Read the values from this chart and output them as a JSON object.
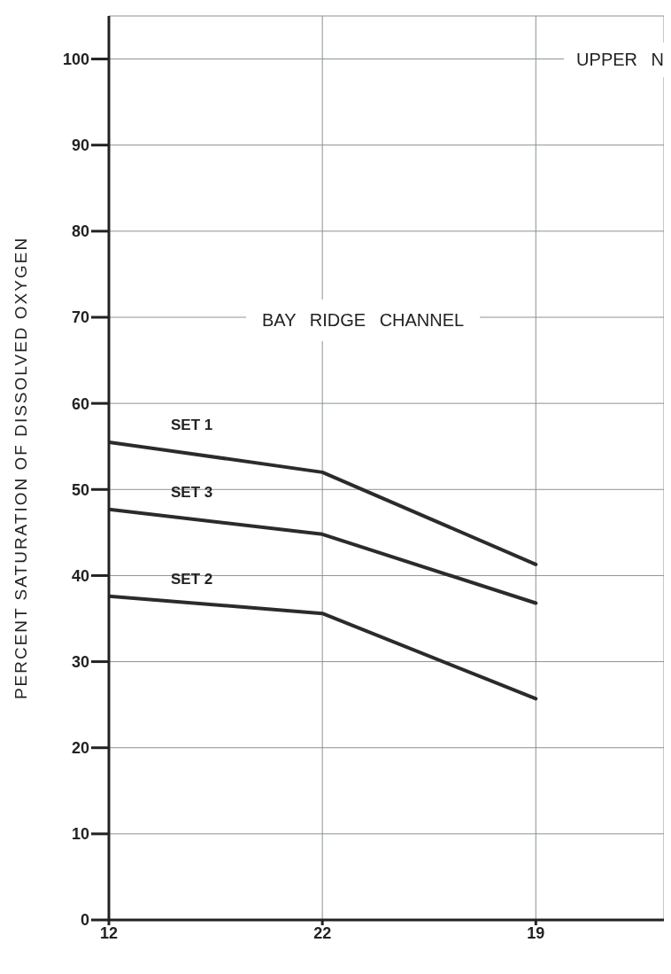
{
  "chart_data": {
    "type": "line",
    "ylabel": "PERCENT SATURATION OF DISSOLVED OXYGEN",
    "annotations": [
      "UPPER N",
      "BAY RIDGE CHANNEL"
    ],
    "categories": [
      "12",
      "22",
      "19"
    ],
    "ylim": [
      0,
      105
    ],
    "yticks": [
      0,
      10,
      20,
      30,
      40,
      50,
      60,
      70,
      80,
      90,
      100
    ],
    "grid": true,
    "marker": "none",
    "line_style": "solid",
    "series": [
      {
        "name": "SET 1",
        "color": "#2b2b2b",
        "values": [
          55.5,
          52,
          41.3
        ]
      },
      {
        "name": "SET 3",
        "color": "#2b2b2b",
        "values": [
          47.7,
          44.8,
          36.8
        ]
      },
      {
        "name": "SET 2",
        "color": "#2b2b2b",
        "values": [
          37.6,
          35.6,
          25.7
        ]
      }
    ]
  }
}
